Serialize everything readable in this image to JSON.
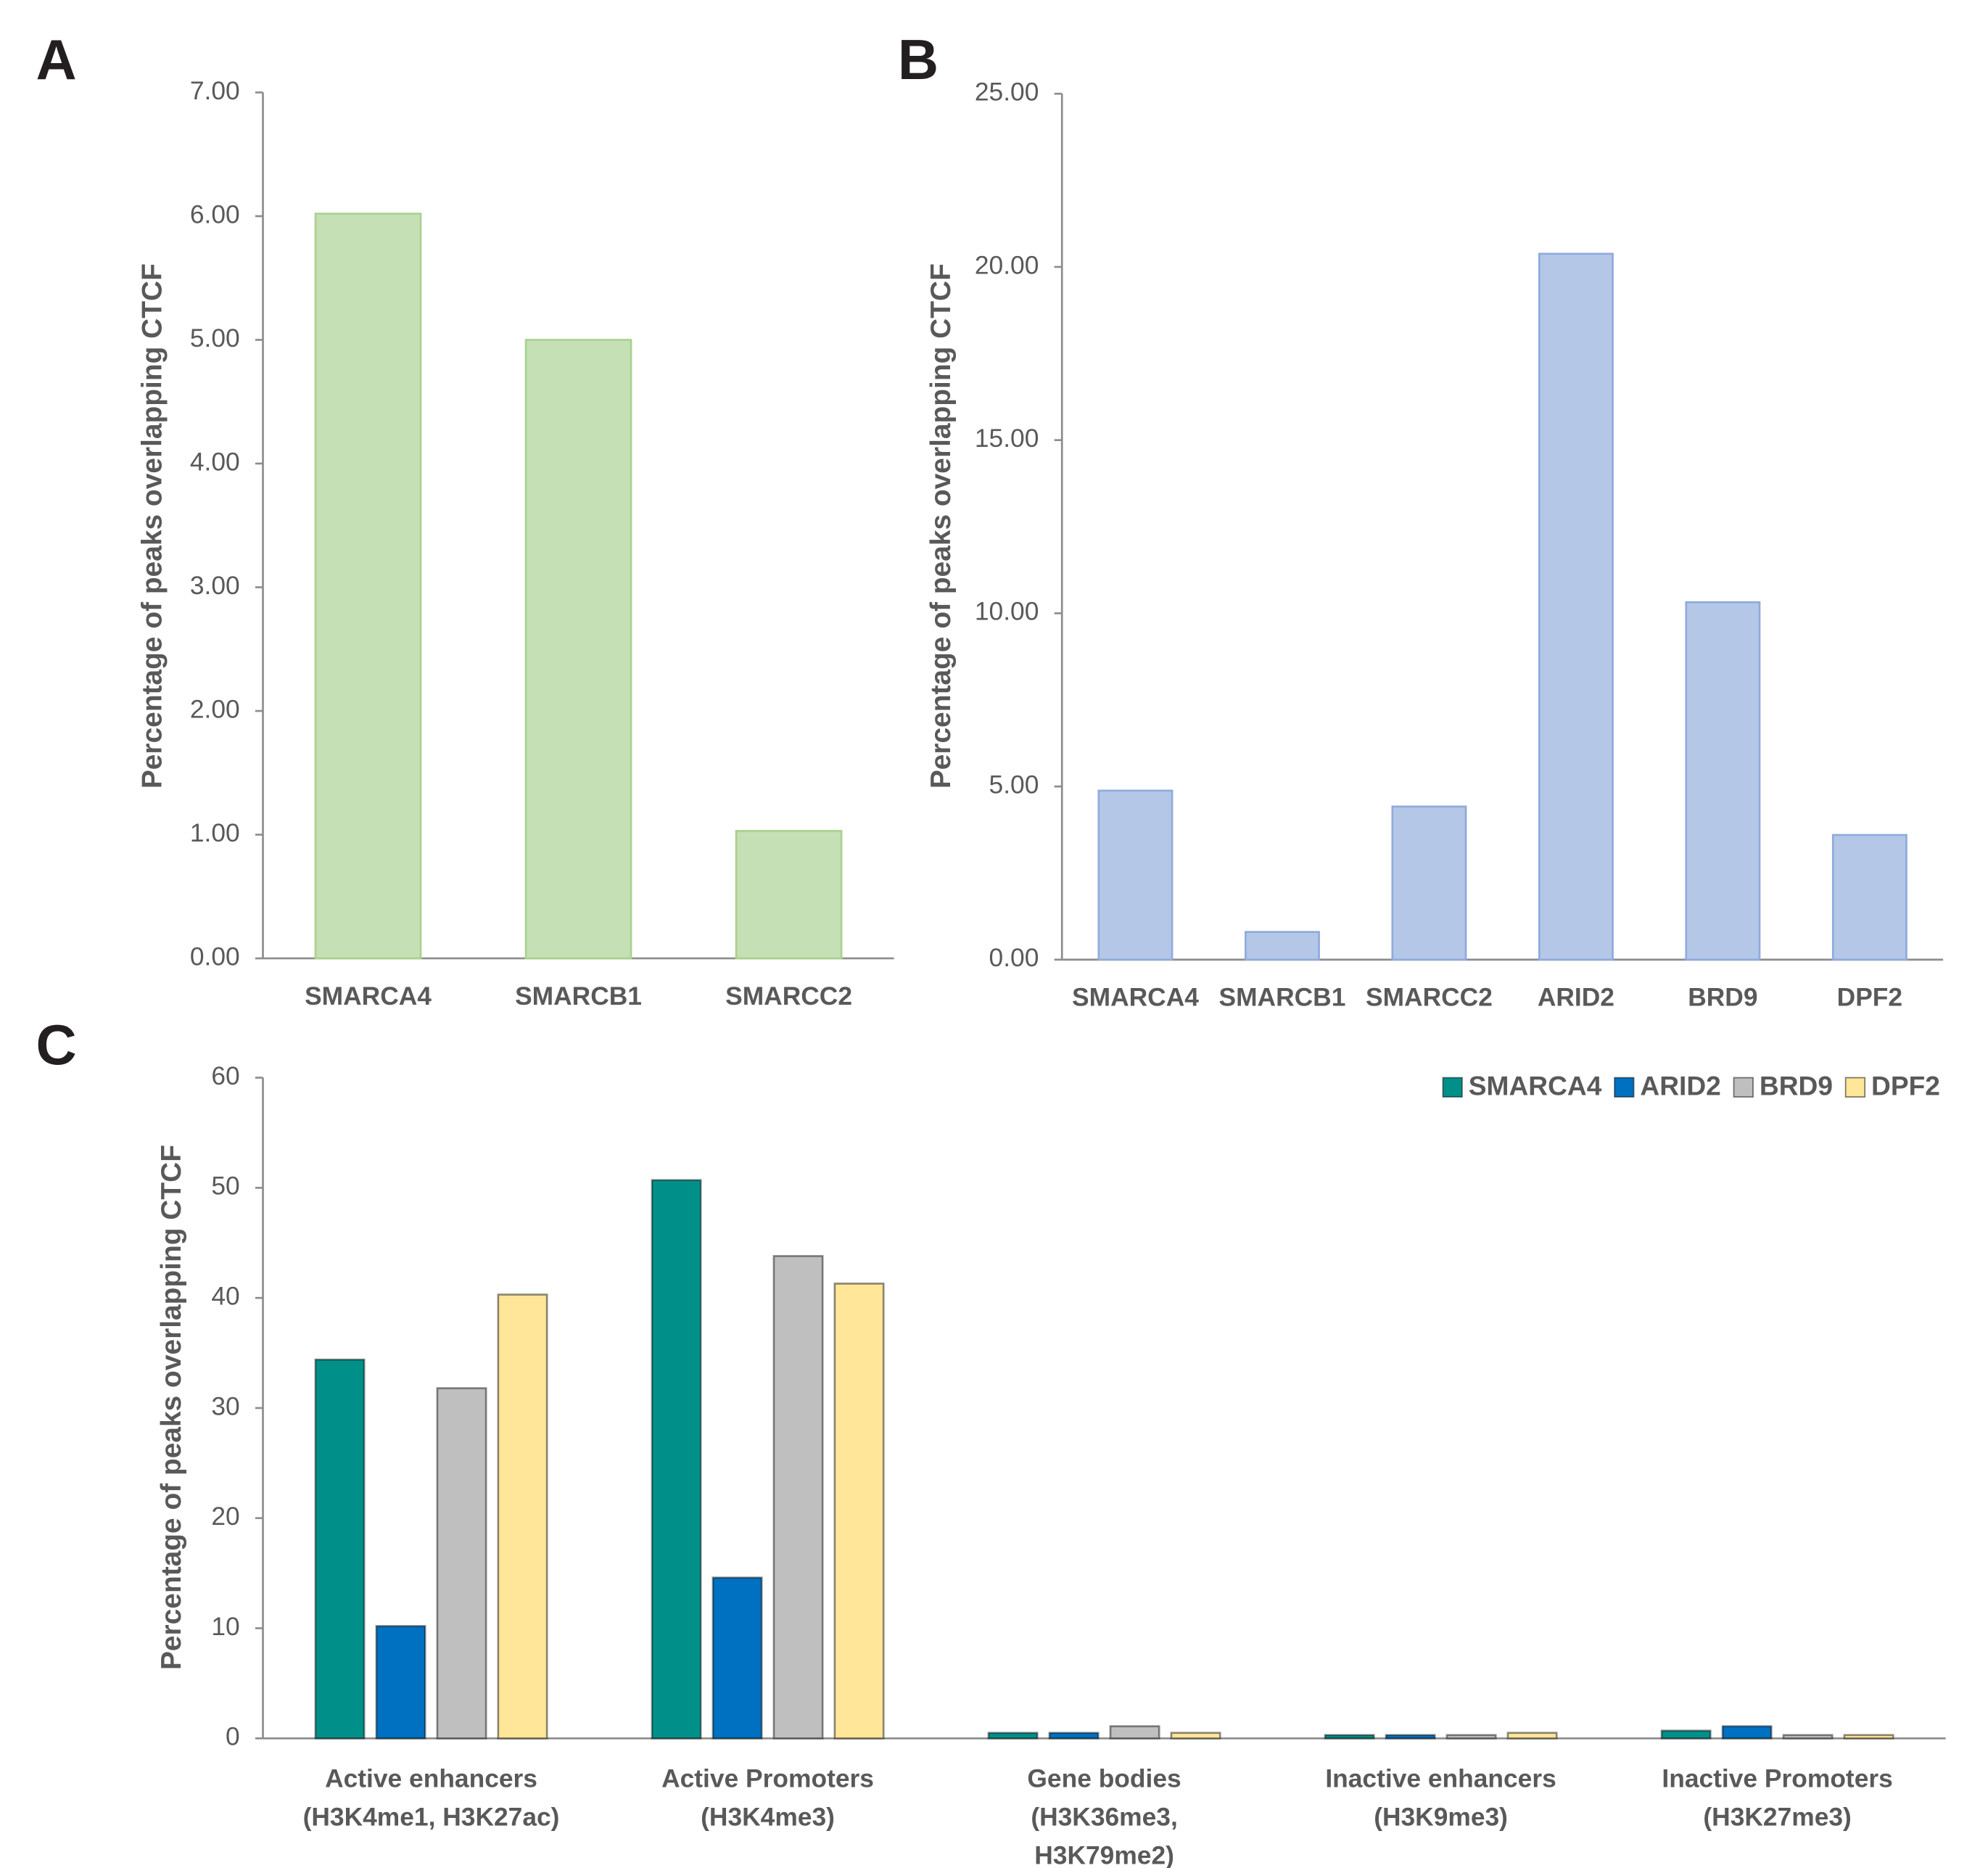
{
  "chart_data": [
    {
      "type": "bar",
      "panel_label": "A",
      "y_label": "Percentage of peaks overlapping CTCF",
      "categories": [
        "SMARCA4",
        "SMARCB1",
        "SMARCC2"
      ],
      "values": [
        6.02,
        5.0,
        1.03
      ],
      "color": "#c5e0b4",
      "stroke": "#a9d18e",
      "ylim": [
        0,
        7
      ],
      "yticks": [
        {
          "value": 0,
          "label": "0.00"
        },
        {
          "value": 1,
          "label": "1.00"
        },
        {
          "value": 2,
          "label": "2.00"
        },
        {
          "value": 3,
          "label": "3.00"
        },
        {
          "value": 4,
          "label": "4.00"
        },
        {
          "value": 5,
          "label": "5.00"
        },
        {
          "value": 6,
          "label": "6.00"
        },
        {
          "value": 7,
          "label": "7.00"
        }
      ],
      "grid": false
    },
    {
      "type": "bar",
      "panel_label": "B",
      "y_label": "Percentage of peaks overlapping CTCF",
      "categories": [
        "SMARCA4",
        "SMARCB1",
        "SMARCC2",
        "ARID2",
        "BRD9",
        "DPF2"
      ],
      "values": [
        4.88,
        0.8,
        4.42,
        20.38,
        10.32,
        3.6
      ],
      "color": "#b4c7e7",
      "stroke": "#8faadc",
      "ylim": [
        0,
        25
      ],
      "yticks": [
        {
          "value": 0,
          "label": "0.00"
        },
        {
          "value": 5,
          "label": "5.00"
        },
        {
          "value": 10,
          "label": "10.00"
        },
        {
          "value": 15,
          "label": "15.00"
        },
        {
          "value": 20,
          "label": "20.00"
        },
        {
          "value": 25,
          "label": "25.00"
        }
      ],
      "grid": false
    },
    {
      "type": "grouped_bar",
      "panel_label": "C",
      "y_label": "Percentage of peaks overlapping CTCF",
      "categories": [
        "Active enhancers\n(H3K4me1, H3K27ac)",
        "Active Promoters\n(H3K4me3)",
        "Gene bodies\n(H3K36me3,\nH3K79me2)",
        "Inactive enhancers\n(H3K9me3)",
        "Inactive Promoters\n(H3K27me3)"
      ],
      "series": [
        {
          "name": "SMARCA4",
          "color": "#009089",
          "values": [
            34.4,
            50.7,
            0.5,
            0.3,
            0.7
          ]
        },
        {
          "name": "ARID2",
          "color": "#0070c0",
          "values": [
            10.2,
            14.6,
            0.5,
            0.3,
            1.1
          ]
        },
        {
          "name": "BRD9",
          "color": "#bfbfbf",
          "values": [
            31.8,
            43.8,
            1.1,
            0.3,
            0.3
          ]
        },
        {
          "name": "DPF2",
          "color": "#ffe699",
          "values": [
            40.3,
            41.3,
            0.5,
            0.5,
            0.3
          ]
        }
      ],
      "ylim": [
        0,
        60
      ],
      "yticks": [
        0,
        10,
        20,
        30,
        40,
        50,
        60
      ],
      "grid": false,
      "legend": "top-right"
    }
  ]
}
